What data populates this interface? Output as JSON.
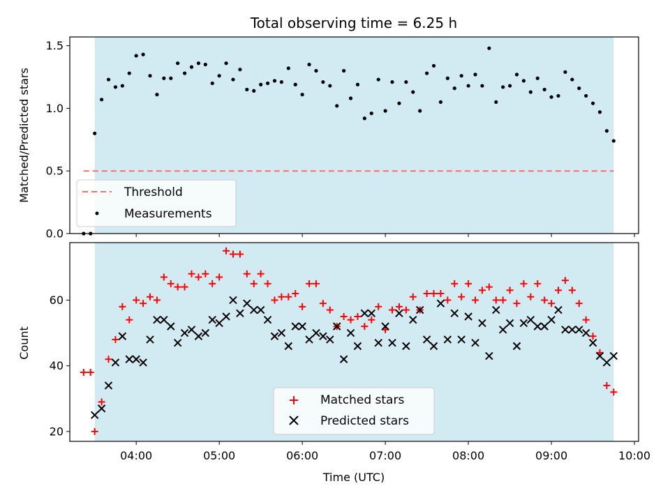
{
  "chart_data": [
    {
      "type": "scatter",
      "title": "Total observing time = 6.25 h",
      "xlabel": "",
      "ylabel": "Matched/Predicted stars",
      "xlim": [
        "03:12",
        "10:03"
      ],
      "ylim": [
        0,
        1.57
      ],
      "yticks": [
        "0.0",
        "0.5",
        "1.0",
        "1.5"
      ],
      "shaded_span": [
        "03:30",
        "09:45"
      ],
      "shade_color": "#add8e6",
      "legend": {
        "position": "lower-left",
        "threshold_label": "Threshold",
        "measurements_label": "Measurements"
      },
      "threshold": {
        "name": "Threshold",
        "value": 0.5,
        "x": [
          "03:22",
          "09:45"
        ],
        "color": "#ff6b6b",
        "style": "dashed"
      },
      "series": [
        {
          "name": "Measurements",
          "color": "#000000",
          "marker": "dot",
          "x": [
            "03:22",
            "03:27",
            "03:30",
            "03:35",
            "03:40",
            "03:45",
            "03:50",
            "03:55",
            "04:00",
            "04:05",
            "04:10",
            "04:15",
            "04:20",
            "04:25",
            "04:30",
            "04:35",
            "04:40",
            "04:45",
            "04:50",
            "04:55",
            "05:00",
            "05:05",
            "05:10",
            "05:15",
            "05:20",
            "05:25",
            "05:30",
            "05:35",
            "05:40",
            "05:45",
            "05:50",
            "05:55",
            "06:00",
            "06:05",
            "06:10",
            "06:15",
            "06:20",
            "06:25",
            "06:30",
            "06:35",
            "06:40",
            "06:45",
            "06:50",
            "06:55",
            "07:00",
            "07:05",
            "07:10",
            "07:15",
            "07:20",
            "07:25",
            "07:30",
            "07:35",
            "07:40",
            "07:45",
            "07:50",
            "07:55",
            "08:00",
            "08:05",
            "08:10",
            "08:15",
            "08:20",
            "08:25",
            "08:30",
            "08:35",
            "08:40",
            "08:45",
            "08:50",
            "08:55",
            "09:00",
            "09:05",
            "09:10",
            "09:15",
            "09:20",
            "09:25",
            "09:30",
            "09:35",
            "09:40",
            "09:45"
          ],
          "y": [
            0.0,
            0.0,
            0.8,
            1.07,
            1.23,
            1.17,
            1.18,
            1.28,
            1.42,
            1.43,
            1.26,
            1.11,
            1.24,
            1.24,
            1.36,
            1.28,
            1.33,
            1.36,
            1.35,
            1.2,
            1.26,
            1.36,
            1.23,
            1.31,
            1.15,
            1.14,
            1.19,
            1.2,
            1.22,
            1.21,
            1.32,
            1.19,
            1.11,
            1.35,
            1.3,
            1.21,
            1.18,
            1.02,
            1.3,
            1.08,
            1.19,
            0.92,
            0.96,
            1.23,
            0.98,
            1.21,
            1.04,
            1.21,
            1.13,
            0.98,
            1.28,
            1.34,
            1.05,
            1.24,
            1.16,
            1.26,
            1.18,
            1.27,
            1.18,
            1.48,
            1.05,
            1.17,
            1.18,
            1.27,
            1.22,
            1.13,
            1.24,
            1.15,
            1.09,
            1.1,
            1.29,
            1.23,
            1.16,
            1.1,
            1.04,
            0.97,
            0.82,
            0.74
          ]
        }
      ]
    },
    {
      "type": "scatter",
      "title": "",
      "xlabel": "Time (UTC)",
      "ylabel": "Count",
      "xlim": [
        "03:12",
        "10:03"
      ],
      "ylim": [
        17,
        77.5
      ],
      "xticks": [
        "04:00",
        "05:00",
        "06:00",
        "07:00",
        "08:00",
        "09:00",
        "10:00"
      ],
      "yticks": [
        "20",
        "40",
        "60"
      ],
      "shaded_span": [
        "03:30",
        "09:45"
      ],
      "shade_color": "#add8e6",
      "legend": {
        "position": "lower-center",
        "matched_label": "Matched stars",
        "predicted_label": "Predicted stars"
      },
      "series": [
        {
          "name": "Matched stars",
          "color": "#ff0000",
          "marker": "plus",
          "x": [
            "03:22",
            "03:27",
            "03:30",
            "03:35",
            "03:40",
            "03:45",
            "03:50",
            "03:55",
            "04:00",
            "04:05",
            "04:10",
            "04:15",
            "04:20",
            "04:25",
            "04:30",
            "04:35",
            "04:40",
            "04:45",
            "04:50",
            "04:55",
            "05:00",
            "05:05",
            "05:10",
            "05:15",
            "05:20",
            "05:25",
            "05:30",
            "05:35",
            "05:40",
            "05:45",
            "05:50",
            "05:55",
            "06:00",
            "06:05",
            "06:10",
            "06:15",
            "06:20",
            "06:25",
            "06:30",
            "06:35",
            "06:40",
            "06:45",
            "06:50",
            "06:55",
            "07:00",
            "07:05",
            "07:10",
            "07:15",
            "07:20",
            "07:25",
            "07:30",
            "07:35",
            "07:40",
            "07:45",
            "07:50",
            "07:55",
            "08:00",
            "08:05",
            "08:10",
            "08:15",
            "08:20",
            "08:25",
            "08:30",
            "08:35",
            "08:40",
            "08:45",
            "08:50",
            "08:55",
            "09:00",
            "09:05",
            "09:10",
            "09:15",
            "09:20",
            "09:25",
            "09:30",
            "09:35",
            "09:40",
            "09:45"
          ],
          "y": [
            38,
            38,
            20,
            29,
            42,
            48,
            58,
            54,
            60,
            59,
            61,
            60,
            67,
            65,
            64,
            64,
            68,
            67,
            68,
            65,
            67,
            75,
            74,
            74,
            68,
            65,
            68,
            65,
            60,
            61,
            61,
            62,
            58,
            65,
            65,
            59,
            57,
            52,
            55,
            54,
            55,
            52,
            54,
            58,
            51,
            57,
            58,
            57,
            61,
            57,
            62,
            62,
            62,
            60,
            65,
            61,
            65,
            60,
            63,
            64,
            60,
            60,
            63,
            59,
            65,
            61,
            65,
            60,
            59,
            63,
            66,
            63,
            59,
            54,
            49,
            44,
            34,
            32
          ]
        },
        {
          "name": "Predicted stars",
          "color": "#000000",
          "marker": "x",
          "x": [
            "03:30",
            "03:35",
            "03:40",
            "03:45",
            "03:50",
            "03:55",
            "04:00",
            "04:05",
            "04:10",
            "04:15",
            "04:20",
            "04:25",
            "04:30",
            "04:35",
            "04:40",
            "04:45",
            "04:50",
            "04:55",
            "05:00",
            "05:05",
            "05:10",
            "05:15",
            "05:20",
            "05:25",
            "05:30",
            "05:35",
            "05:40",
            "05:45",
            "05:50",
            "05:55",
            "06:00",
            "06:05",
            "06:10",
            "06:15",
            "06:20",
            "06:25",
            "06:30",
            "06:35",
            "06:40",
            "06:45",
            "06:50",
            "06:55",
            "07:00",
            "07:05",
            "07:10",
            "07:15",
            "07:20",
            "07:25",
            "07:30",
            "07:35",
            "07:40",
            "07:45",
            "07:50",
            "07:55",
            "08:00",
            "08:05",
            "08:10",
            "08:15",
            "08:20",
            "08:25",
            "08:30",
            "08:35",
            "08:40",
            "08:45",
            "08:50",
            "08:55",
            "09:00",
            "09:05",
            "09:10",
            "09:15",
            "09:20",
            "09:25",
            "09:30",
            "09:35",
            "09:40",
            "09:45"
          ],
          "y": [
            25,
            27,
            34,
            41,
            49,
            42,
            42,
            41,
            48,
            54,
            54,
            52,
            47,
            50,
            51,
            49,
            50,
            54,
            53,
            55,
            60,
            56,
            59,
            57,
            57,
            54,
            49,
            50,
            46,
            52,
            52,
            48,
            50,
            49,
            48,
            52,
            42,
            50,
            46,
            56,
            56,
            47,
            52,
            47,
            56,
            46,
            54,
            57,
            48,
            46,
            59,
            48,
            56,
            48,
            55,
            47,
            53,
            43,
            57,
            51,
            53,
            46,
            53,
            54,
            52,
            52,
            54,
            57,
            51,
            51,
            51,
            50,
            47,
            43,
            41,
            43
          ]
        }
      ]
    }
  ]
}
